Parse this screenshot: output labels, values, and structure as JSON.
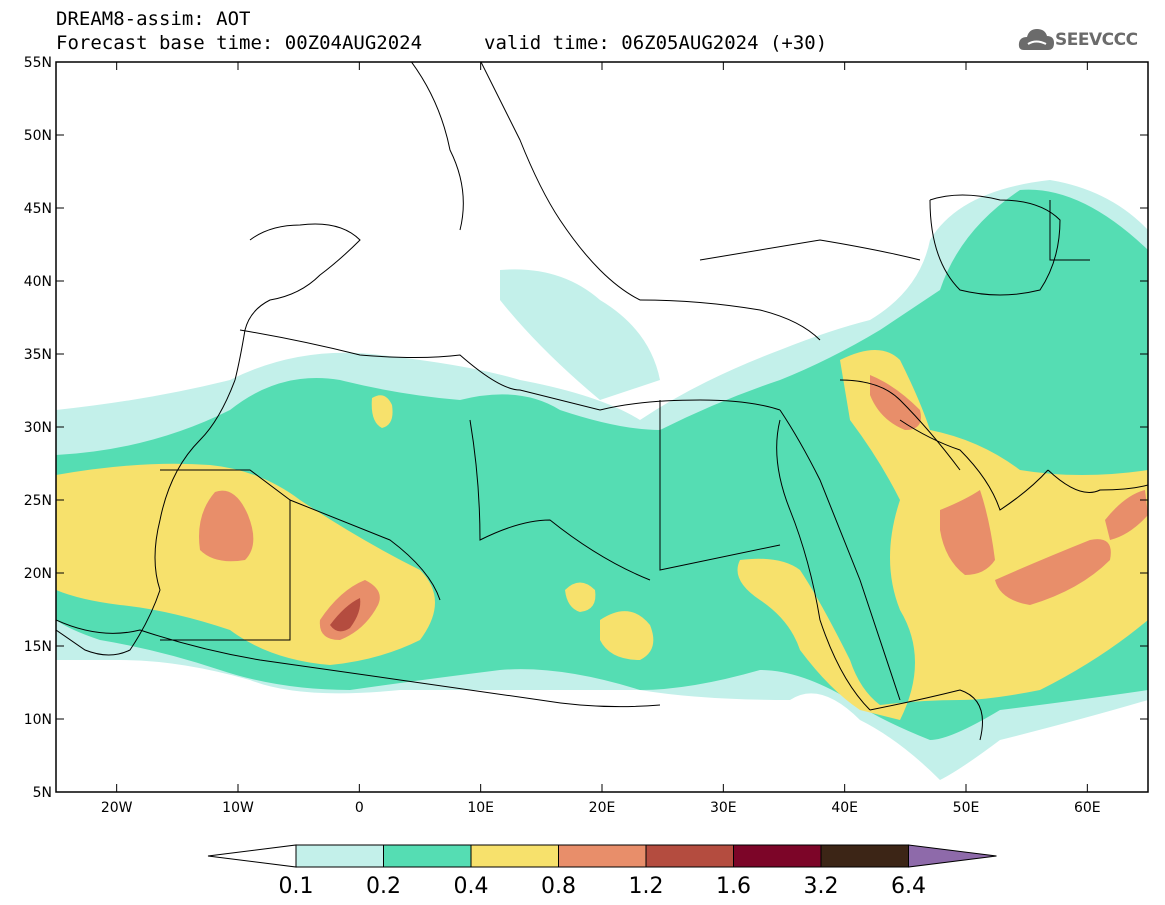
{
  "header": {
    "model_line": "DREAM8-assim: AOT",
    "base_time": "Forecast base time: 00Z04AUG2024",
    "valid_time": "valid time: 06Z05AUG2024 (+30)",
    "logo_text": "SEEVCCC"
  },
  "map": {
    "lon_range": [
      -25,
      65
    ],
    "lat_range": [
      5,
      55
    ],
    "lat_ticks": [
      "5N",
      "10N",
      "15N",
      "20N",
      "25N",
      "30N",
      "35N",
      "40N",
      "45N",
      "50N",
      "55N"
    ],
    "lon_ticks": [
      "20W",
      "10W",
      "0",
      "10E",
      "20E",
      "30E",
      "40E",
      "50E",
      "60E"
    ]
  },
  "colorbar": {
    "levels": [
      "0.1",
      "0.2",
      "0.4",
      "0.8",
      "1.2",
      "1.6",
      "3.2",
      "6.4"
    ],
    "colors": {
      "under": "#ffffff",
      "c1": "#c3f0ea",
      "c2": "#55ddb3",
      "c3": "#f7e16c",
      "c4": "#e88e6a",
      "c5": "#b44c3f",
      "c6": "#7c0528",
      "c7": "#3c2516",
      "over": "#8e6aaa"
    }
  }
}
